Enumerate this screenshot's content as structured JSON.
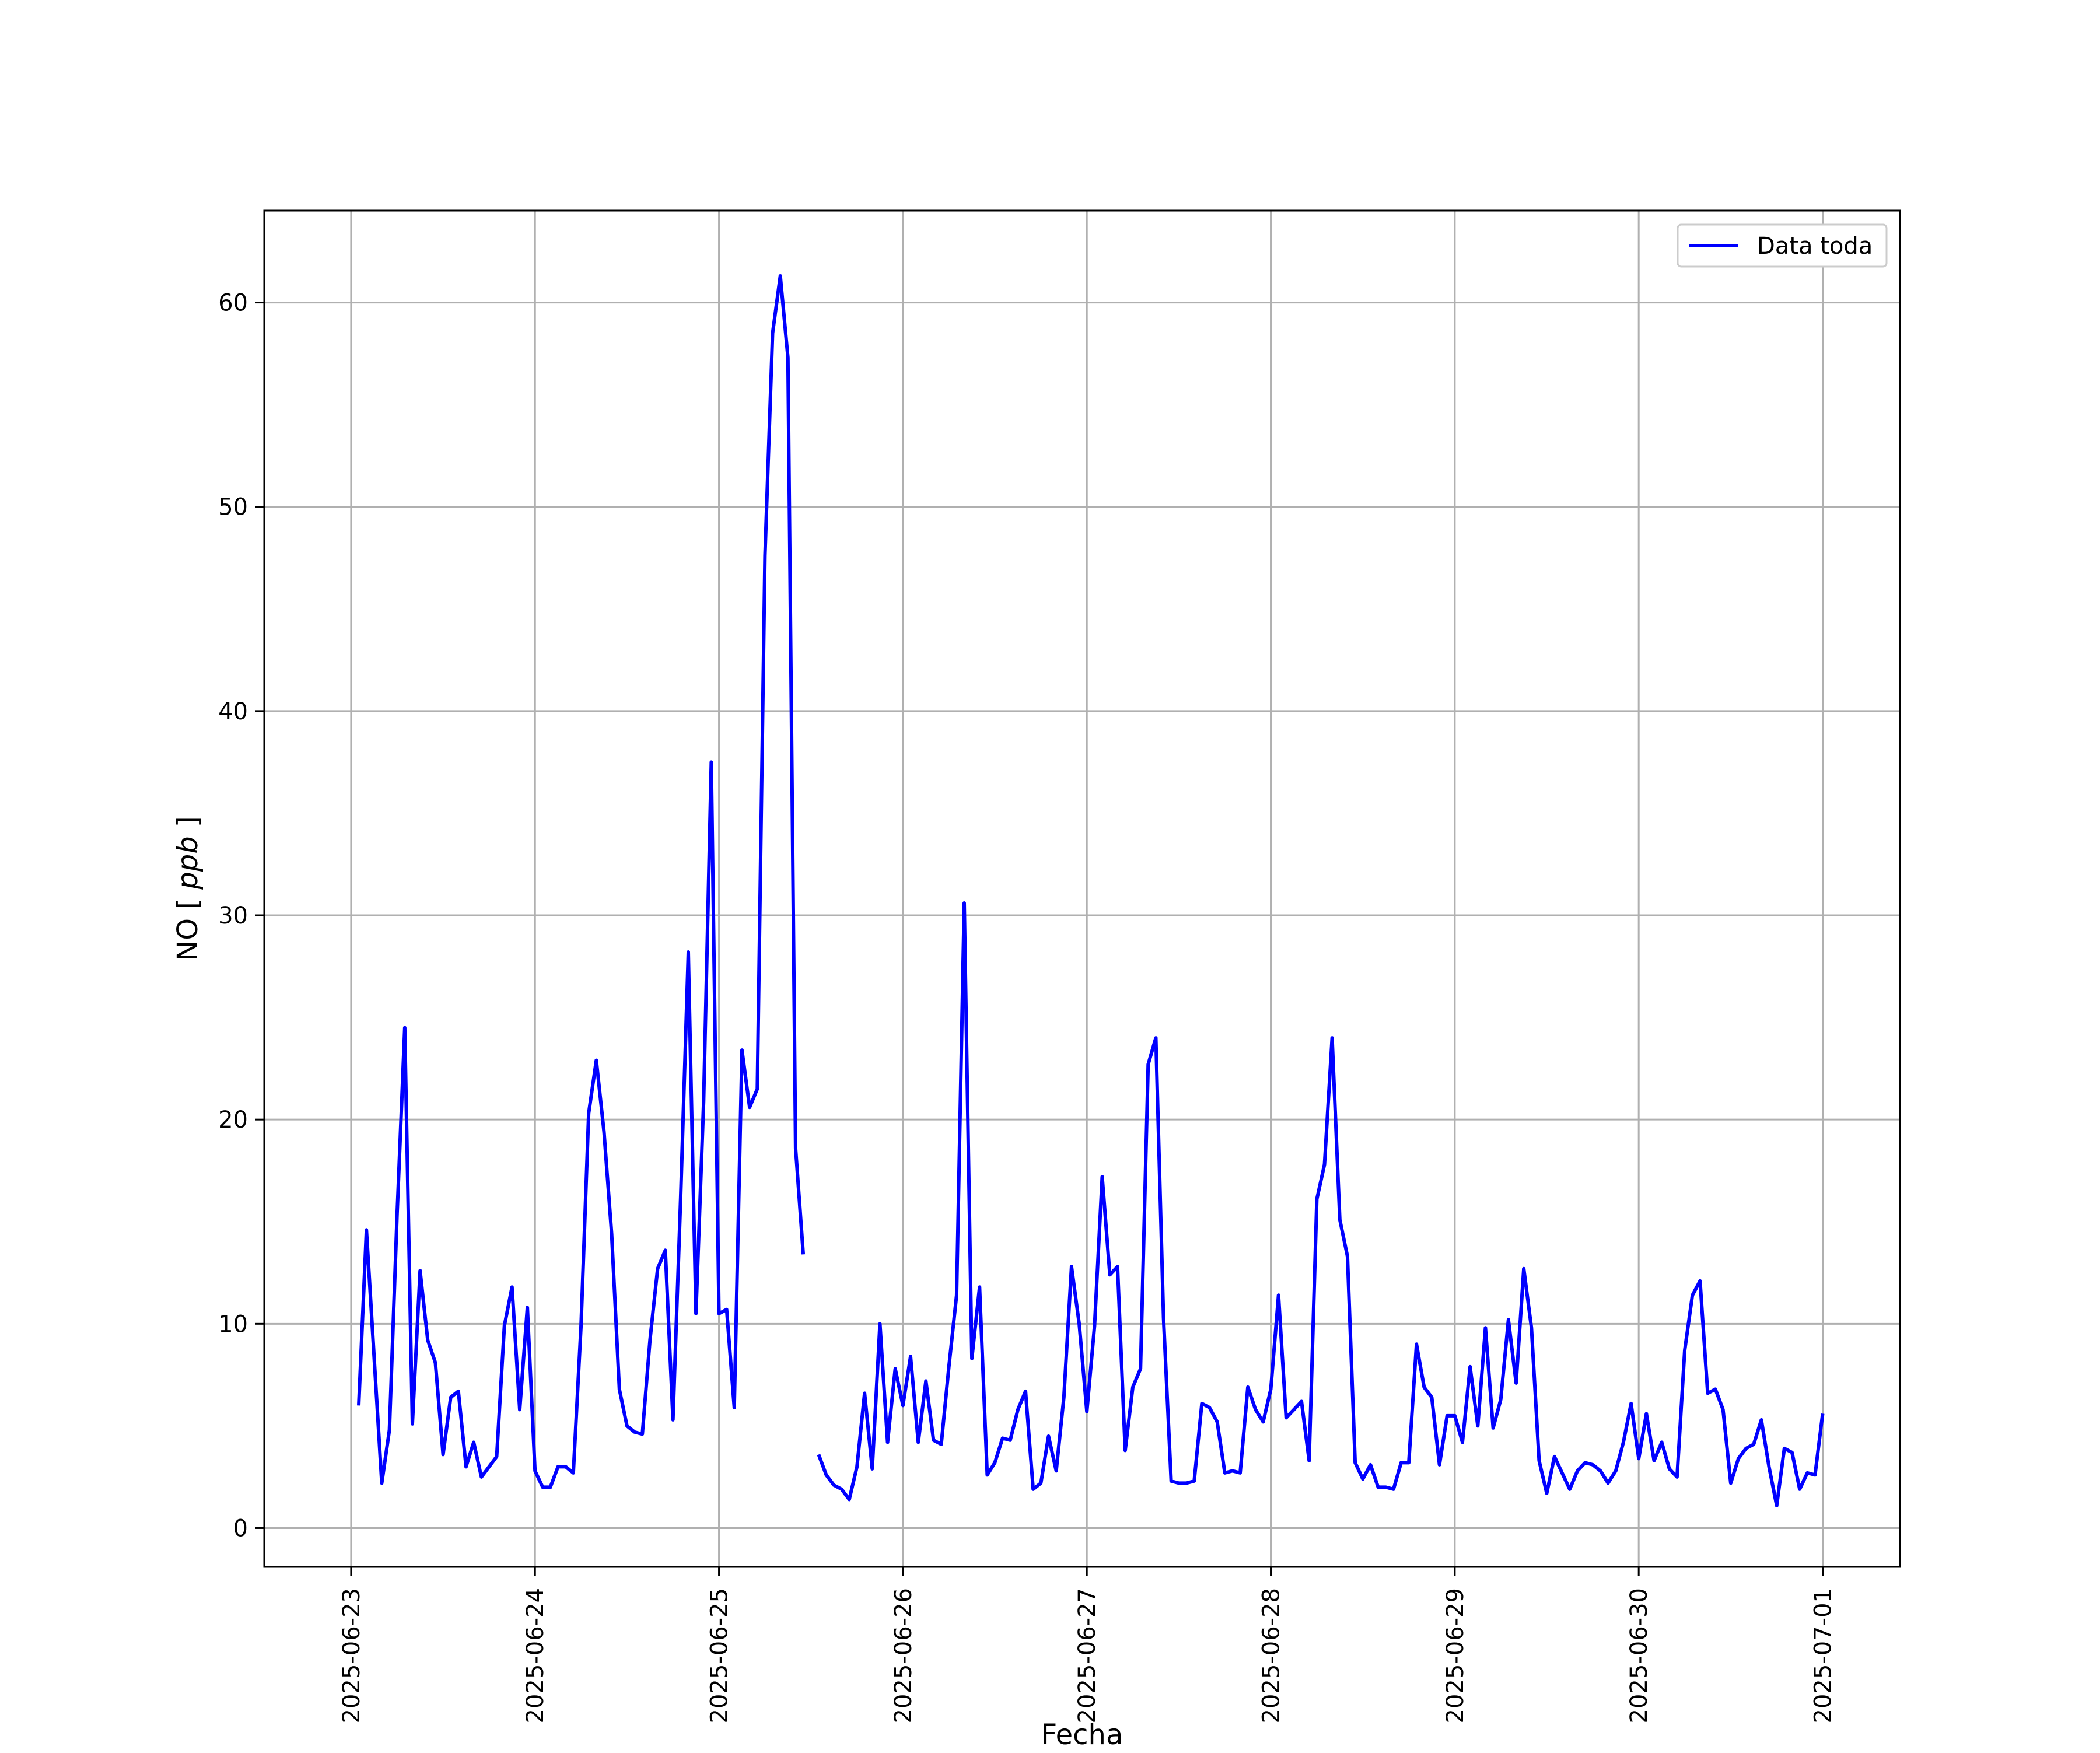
{
  "chart_data": {
    "type": "line",
    "title": "",
    "xlabel": "Fecha",
    "ylabel": "NO [ppb]",
    "ylabel_main": "NO",
    "ylabel_unit": "ppb",
    "xlim": [
      "2025-06-22 12:40",
      "2025-07-01 10:05"
    ],
    "ylim": [
      -1.9,
      64.5
    ],
    "x_ticks": [
      "2025-06-23",
      "2025-06-24",
      "2025-06-25",
      "2025-06-26",
      "2025-06-27",
      "2025-06-28",
      "2025-06-29",
      "2025-06-30",
      "2025-07-01"
    ],
    "y_ticks": [
      0,
      10,
      20,
      30,
      40,
      50,
      60
    ],
    "grid": true,
    "legend_position": "top-right",
    "colors": {
      "series": "#0000ff",
      "grid": "#b0b0b0",
      "axes": "#000000"
    },
    "series": [
      {
        "name": "Data toda",
        "x": [
          "2025-06-23 01:00",
          "2025-06-23 02:00",
          "2025-06-23 03:00",
          "2025-06-23 04:00",
          "2025-06-23 05:00",
          "2025-06-23 06:00",
          "2025-06-23 07:00",
          "2025-06-23 08:00",
          "2025-06-23 09:00",
          "2025-06-23 10:00",
          "2025-06-23 11:00",
          "2025-06-23 12:00",
          "2025-06-23 13:00",
          "2025-06-23 14:00",
          "2025-06-23 15:00",
          "2025-06-23 16:00",
          "2025-06-23 17:00",
          "2025-06-23 18:00",
          "2025-06-23 19:00",
          "2025-06-23 20:00",
          "2025-06-23 21:00",
          "2025-06-23 22:00",
          "2025-06-23 23:00",
          "2025-06-24 00:00",
          "2025-06-24 01:00",
          "2025-06-24 02:00",
          "2025-06-24 03:00",
          "2025-06-24 04:00",
          "2025-06-24 05:00",
          "2025-06-24 06:00",
          "2025-06-24 07:00",
          "2025-06-24 08:00",
          "2025-06-24 09:00",
          "2025-06-24 10:00",
          "2025-06-24 11:00",
          "2025-06-24 12:00",
          "2025-06-24 13:00",
          "2025-06-24 14:00",
          "2025-06-24 15:00",
          "2025-06-24 16:00",
          "2025-06-24 17:00",
          "2025-06-24 18:00",
          "2025-06-24 19:00",
          "2025-06-24 20:00",
          "2025-06-24 21:00",
          "2025-06-24 22:00",
          "2025-06-24 23:00",
          "2025-06-25 00:00",
          "2025-06-25 01:00",
          "2025-06-25 02:00",
          "2025-06-25 03:00",
          "2025-06-25 04:00",
          "2025-06-25 05:00",
          "2025-06-25 06:00",
          "2025-06-25 07:00",
          "2025-06-25 08:00",
          "2025-06-25 09:00",
          "2025-06-25 10:00",
          "2025-06-25 11:00",
          null,
          "2025-06-25 13:00",
          "2025-06-25 14:00",
          "2025-06-25 15:00",
          "2025-06-25 16:00",
          "2025-06-25 17:00",
          "2025-06-25 18:00",
          "2025-06-25 19:00",
          "2025-06-25 20:00",
          "2025-06-25 21:00",
          "2025-06-25 22:00",
          "2025-06-25 23:00",
          "2025-06-26 00:00",
          "2025-06-26 01:00",
          "2025-06-26 02:00",
          "2025-06-26 03:00",
          "2025-06-26 04:00",
          "2025-06-26 05:00",
          "2025-06-26 06:00",
          "2025-06-26 07:00",
          "2025-06-26 08:00",
          "2025-06-26 09:00",
          "2025-06-26 10:00",
          "2025-06-26 11:00",
          "2025-06-26 12:00",
          "2025-06-26 13:00",
          "2025-06-26 14:00",
          "2025-06-26 15:00",
          "2025-06-26 16:00",
          "2025-06-26 17:00",
          "2025-06-26 18:00",
          "2025-06-26 19:00",
          "2025-06-26 20:00",
          "2025-06-26 21:00",
          "2025-06-26 22:00",
          "2025-06-26 23:00",
          "2025-06-27 00:00",
          "2025-06-27 01:00",
          "2025-06-27 02:00",
          "2025-06-27 03:00",
          "2025-06-27 04:00",
          "2025-06-27 05:00",
          "2025-06-27 06:00",
          "2025-06-27 07:00",
          "2025-06-27 08:00",
          "2025-06-27 09:00",
          "2025-06-27 10:00",
          "2025-06-27 11:00",
          "2025-06-27 12:00",
          "2025-06-27 13:00",
          "2025-06-27 14:00",
          "2025-06-27 15:00",
          "2025-06-27 16:00",
          "2025-06-27 17:00",
          "2025-06-27 18:00",
          "2025-06-27 19:00",
          "2025-06-27 20:00",
          "2025-06-27 21:00",
          "2025-06-27 22:00",
          "2025-06-27 23:00",
          "2025-06-28 00:00",
          "2025-06-28 01:00",
          "2025-06-28 02:00",
          "2025-06-28 03:00",
          "2025-06-28 04:00",
          "2025-06-28 05:00",
          "2025-06-28 06:00",
          "2025-06-28 07:00",
          "2025-06-28 08:00",
          "2025-06-28 09:00",
          "2025-06-28 10:00",
          "2025-06-28 11:00",
          "2025-06-28 12:00",
          "2025-06-28 13:00",
          "2025-06-28 14:00",
          "2025-06-28 15:00",
          "2025-06-28 16:00",
          "2025-06-28 17:00",
          "2025-06-28 18:00",
          "2025-06-28 19:00",
          "2025-06-28 20:00",
          "2025-06-28 21:00",
          "2025-06-28 22:00",
          "2025-06-28 23:00",
          "2025-06-29 00:00",
          "2025-06-29 01:00",
          "2025-06-29 02:00",
          "2025-06-29 03:00",
          "2025-06-29 04:00",
          "2025-06-29 05:00",
          "2025-06-29 06:00",
          "2025-06-29 07:00",
          "2025-06-29 08:00",
          "2025-06-29 09:00",
          "2025-06-29 10:00",
          "2025-06-29 11:00",
          "2025-06-29 12:00",
          "2025-06-29 13:00",
          "2025-06-29 14:00",
          "2025-06-29 15:00",
          "2025-06-29 16:00",
          "2025-06-29 17:00",
          "2025-06-29 18:00",
          "2025-06-29 19:00",
          "2025-06-29 20:00",
          "2025-06-29 21:00",
          "2025-06-29 22:00",
          "2025-06-29 23:00",
          "2025-06-30 00:00",
          "2025-06-30 01:00",
          "2025-06-30 02:00",
          "2025-06-30 03:00",
          "2025-06-30 04:00",
          "2025-06-30 05:00",
          "2025-06-30 06:00",
          "2025-06-30 07:00",
          "2025-06-30 08:00",
          "2025-06-30 09:00",
          "2025-06-30 10:00",
          "2025-06-30 11:00",
          "2025-06-30 12:00",
          "2025-06-30 13:00",
          "2025-06-30 14:00",
          "2025-06-30 15:00",
          "2025-06-30 16:00",
          "2025-06-30 17:00",
          "2025-06-30 18:00",
          "2025-06-30 19:00",
          "2025-06-30 20:00",
          "2025-06-30 21:00",
          "2025-06-30 22:00",
          "2025-06-30 23:00",
          "2025-07-01 00:00"
        ],
        "y": [
          6.0,
          14.6,
          8.4,
          2.2,
          4.8,
          15.3,
          24.5,
          5.1,
          12.6,
          9.2,
          8.1,
          3.6,
          6.4,
          6.7,
          3.0,
          4.2,
          2.5,
          3.0,
          3.5,
          9.9,
          11.8,
          5.8,
          10.8,
          2.8,
          2.0,
          2.0,
          3.0,
          3.0,
          2.7,
          9.9,
          20.3,
          22.9,
          19.4,
          14.4,
          6.8,
          5.0,
          4.7,
          4.6,
          9.2,
          12.7,
          13.6,
          5.3,
          16.2,
          28.2,
          10.5,
          20.9,
          37.5,
          10.5,
          10.7,
          5.9,
          23.4,
          20.6,
          21.5,
          47.6,
          58.5,
          61.3,
          57.3,
          18.6,
          13.4,
          null,
          3.6,
          2.6,
          2.1,
          1.9,
          1.4,
          3.0,
          6.6,
          2.9,
          10.0,
          4.2,
          7.8,
          6.0,
          8.4,
          4.2,
          7.2,
          4.3,
          4.1,
          7.9,
          11.4,
          30.6,
          8.3,
          11.8,
          2.6,
          3.2,
          4.4,
          4.3,
          5.8,
          6.7,
          1.9,
          2.2,
          4.5,
          2.8,
          6.4,
          12.8,
          10.0,
          5.7,
          9.9,
          17.2,
          12.4,
          12.8,
          3.8,
          6.9,
          7.8,
          22.7,
          24.0,
          10.3,
          2.3,
          2.2,
          2.2,
          2.3,
          6.1,
          5.9,
          5.2,
          2.7,
          2.8,
          2.7,
          6.9,
          5.8,
          5.2,
          6.8,
          11.4,
          5.4,
          5.8,
          6.2,
          3.3,
          16.1,
          17.8,
          24.0,
          15.1,
          13.3,
          3.2,
          2.4,
          3.1,
          2.0,
          2.0,
          1.9,
          3.2,
          3.2,
          9.0,
          6.9,
          6.4,
          3.1,
          5.5,
          5.5,
          4.2,
          7.9,
          5.0,
          9.8,
          4.9,
          6.3,
          10.2,
          7.1,
          12.7,
          9.8,
          3.3,
          1.7,
          3.5,
          2.7,
          1.9,
          2.8,
          3.2,
          3.1,
          2.8,
          2.2,
          2.8,
          4.2,
          6.1,
          3.4,
          5.6,
          3.3,
          4.2,
          2.9,
          2.5,
          8.7,
          11.4,
          12.1,
          6.6,
          6.8,
          5.8,
          2.2,
          3.4,
          3.9,
          4.1,
          5.3,
          3.0,
          1.1,
          3.9,
          3.7,
          1.9,
          2.7,
          2.6,
          5.6
        ]
      }
    ]
  }
}
